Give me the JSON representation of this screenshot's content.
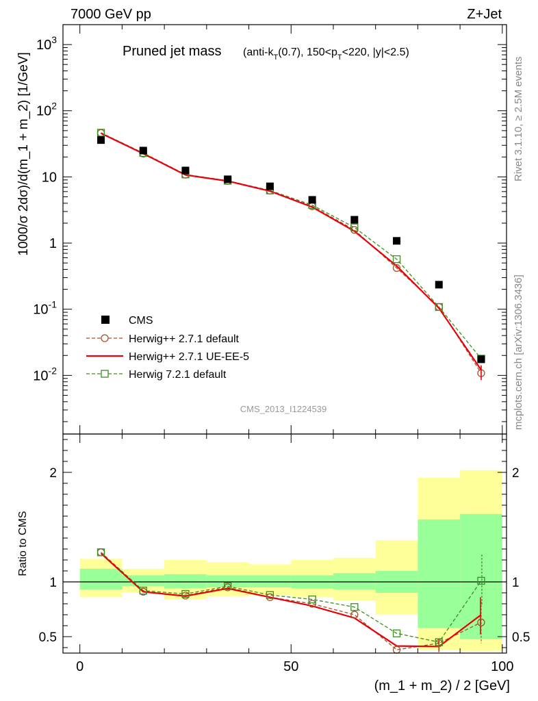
{
  "header": {
    "left": "7000 GeV pp",
    "right": "Z+Jet"
  },
  "side_labels": {
    "rivet": "Rivet 3.1.10, ≥ 2.5M events",
    "mcplots": "mcplots.cern.ch [arXiv:1306.3436]"
  },
  "watermark": "CMS_2013_I1224539",
  "colors": {
    "cms": "#000000",
    "herwigpp_default": "#a0522d",
    "herwigpp_ueee5": "#e8000b",
    "herwig7": "#3c8c1e",
    "band_outer": "#ffff99",
    "band_inner": "#99ff99"
  },
  "chart_data": [
    {
      "type": "line",
      "title_main": "Pruned jet mass",
      "title_sub": "(anti-k_T(0.7), 150<p_T<220, |y|<2.5)",
      "ylabel": "1000/σ 2dσ)/d(m_1 + m_2) [1/GeV]",
      "yscale": "log",
      "ylim": [
        0.0013,
        2000
      ],
      "xlim": [
        -4,
        101
      ],
      "y_tick_labels": [
        "10^{-2}",
        "10^{-1}",
        "1",
        "10",
        "10^{2}",
        "10^{3}"
      ],
      "x": [
        5,
        15,
        25,
        35,
        45,
        55,
        65,
        75,
        85,
        95
      ],
      "series": [
        {
          "name": "CMS",
          "style": "square-filled",
          "values": [
            36,
            25,
            12.5,
            9.2,
            7.2,
            4.5,
            2.25,
            1.08,
            0.235,
            0.0175
          ]
        },
        {
          "name": "Herwig++ 2.7.1 default",
          "style": "circle-dashed",
          "values": [
            46,
            22.5,
            10.8,
            8.7,
            6.2,
            3.6,
            1.58,
            0.42,
            0.108,
            0.0108
          ]
        },
        {
          "name": "Herwig++ 2.7.1 UE-EE-5",
          "style": "solid",
          "values": [
            45.5,
            22.5,
            10.7,
            8.65,
            6.1,
            3.5,
            1.51,
            0.45,
            0.104,
            0.0121
          ]
        },
        {
          "name": "Herwig 7.2.1 default",
          "style": "square-dashed",
          "values": [
            46.5,
            23,
            10.9,
            8.75,
            6.25,
            3.75,
            1.72,
            0.57,
            0.108,
            0.0179
          ]
        }
      ],
      "legend": "left, lower half"
    },
    {
      "type": "line",
      "ylabel": "Ratio to CMS",
      "xlabel": "(m_1 + m_2) / 2 [GeV]",
      "ylim": [
        0.35,
        2.35
      ],
      "xlim": [
        -4,
        101
      ],
      "x_ticks": [
        0,
        50,
        100
      ],
      "y_ticks": [
        0.5,
        1,
        2
      ],
      "bin_edges": [
        0,
        10,
        20,
        30,
        40,
        50,
        60,
        70,
        80,
        90,
        100
      ],
      "bands": {
        "inner_low": [
          0.93,
          0.96,
          0.94,
          0.95,
          0.95,
          0.94,
          0.93,
          0.9,
          0.58,
          0.48
        ],
        "inner_high": [
          1.12,
          1.06,
          1.07,
          1.06,
          1.06,
          1.06,
          1.08,
          1.1,
          1.57,
          1.62
        ],
        "outer_low": [
          0.86,
          0.9,
          0.84,
          0.87,
          0.88,
          0.86,
          0.83,
          0.7,
          0.38,
          0.37
        ],
        "outer_high": [
          1.21,
          1.12,
          1.2,
          1.18,
          1.16,
          1.2,
          1.22,
          1.38,
          1.95,
          2.02
        ]
      },
      "x": [
        5,
        15,
        25,
        35,
        45,
        55,
        65,
        75,
        85,
        95
      ],
      "series": [
        {
          "name": "Herwig++ 2.7.1 default",
          "values": [
            1.27,
            0.91,
            0.875,
            0.95,
            0.86,
            0.8,
            0.7,
            0.38,
            0.44,
            0.63
          ]
        },
        {
          "name": "Herwig++ 2.7.1 UE-EE-5",
          "values": [
            1.26,
            0.91,
            0.87,
            0.94,
            0.86,
            0.78,
            0.67,
            0.415,
            0.41,
            0.7
          ]
        },
        {
          "name": "Herwig 7.2.1 default",
          "values": [
            1.27,
            0.92,
            0.89,
            0.96,
            0.88,
            0.84,
            0.77,
            0.53,
            0.45,
            1.01
          ]
        }
      ]
    }
  ]
}
